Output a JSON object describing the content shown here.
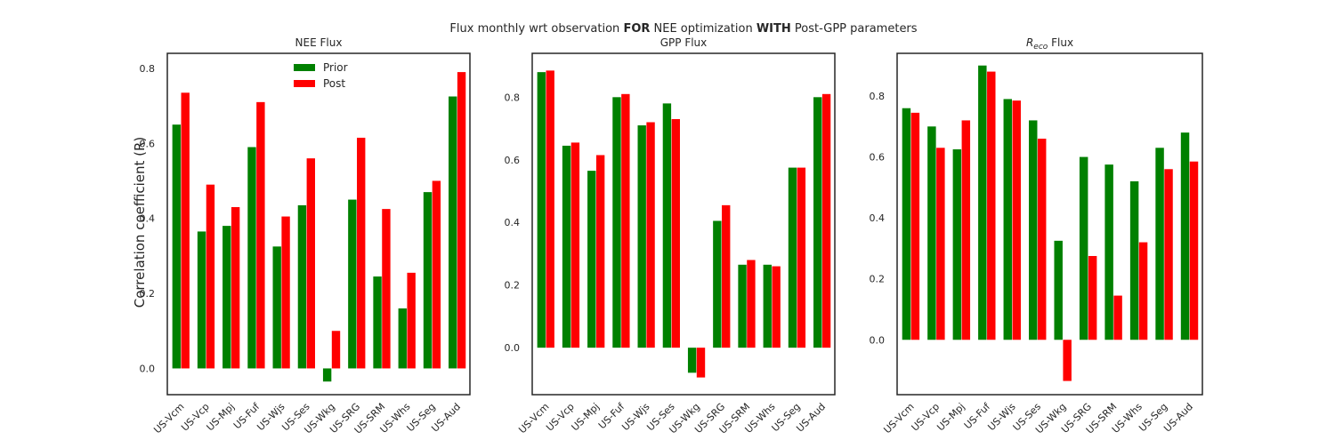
{
  "suptitle": {
    "part1": "Flux monthly wrt observation ",
    "bold1": "FOR",
    "part2": " NEE optimization ",
    "bold2": "WITH",
    "part3": " Post-GPP parameters"
  },
  "colors": {
    "prior": "#008000",
    "post": "#ff0000",
    "frame": "#262626"
  },
  "chart_data": [
    {
      "type": "bar",
      "title": "NEE Flux",
      "ylabel": "Correlation coefficient (R)",
      "categories": [
        "US-Vcm",
        "US-Vcp",
        "US-Mpj",
        "US-Fuf",
        "US-Wjs",
        "US-Ses",
        "US-Wkg",
        "US-SRG",
        "US-SRM",
        "US-Whs",
        "US-Seg",
        "US-Aud"
      ],
      "series": [
        {
          "name": "Prior",
          "values": [
            0.65,
            0.365,
            0.38,
            0.59,
            0.325,
            0.435,
            -0.035,
            0.45,
            0.245,
            0.16,
            0.47,
            0.725
          ]
        },
        {
          "name": "Post",
          "values": [
            0.735,
            0.49,
            0.43,
            0.71,
            0.405,
            0.56,
            0.1,
            0.615,
            0.425,
            0.255,
            0.5,
            0.79
          ]
        }
      ],
      "ylim": [
        -0.07,
        0.84
      ],
      "yticks": [
        "0.0",
        "0.2",
        "0.4",
        "0.6",
        "0.8"
      ],
      "legend": "upper-center"
    },
    {
      "type": "bar",
      "title": "GPP Flux",
      "categories": [
        "US-Vcm",
        "US-Vcp",
        "US-Mpj",
        "US-Fuf",
        "US-Wjs",
        "US-Ses",
        "US-Wkg",
        "US-SRG",
        "US-SRM",
        "US-Whs",
        "US-Seg",
        "US-Aud"
      ],
      "series": [
        {
          "name": "Prior",
          "values": [
            0.88,
            0.645,
            0.565,
            0.8,
            0.71,
            0.78,
            -0.08,
            0.405,
            0.265,
            0.265,
            0.575,
            0.8
          ]
        },
        {
          "name": "Post",
          "values": [
            0.885,
            0.655,
            0.615,
            0.81,
            0.72,
            0.73,
            -0.095,
            0.455,
            0.28,
            0.26,
            0.575,
            0.81
          ]
        }
      ],
      "ylim": [
        -0.15,
        0.94
      ],
      "yticks": [
        "0.0",
        "0.2",
        "0.4",
        "0.6",
        "0.8"
      ]
    },
    {
      "type": "bar",
      "title": "R_eco Flux",
      "title_main": "R",
      "title_sub": "eco",
      "title_rest": " Flux",
      "categories": [
        "US-Vcm",
        "US-Vcp",
        "US-Mpj",
        "US-Fuf",
        "US-Wjs",
        "US-Ses",
        "US-Wkg",
        "US-SRG",
        "US-SRM",
        "US-Whs",
        "US-Seg",
        "US-Aud"
      ],
      "series": [
        {
          "name": "Prior",
          "values": [
            0.76,
            0.7,
            0.625,
            0.9,
            0.79,
            0.72,
            0.325,
            0.6,
            0.575,
            0.52,
            0.63,
            0.68
          ]
        },
        {
          "name": "Post",
          "values": [
            0.745,
            0.63,
            0.72,
            0.88,
            0.785,
            0.66,
            -0.135,
            0.275,
            0.145,
            0.32,
            0.56,
            0.585
          ]
        }
      ],
      "ylim": [
        -0.18,
        0.94
      ],
      "yticks": [
        "0.0",
        "0.2",
        "0.4",
        "0.6",
        "0.8"
      ]
    }
  ]
}
